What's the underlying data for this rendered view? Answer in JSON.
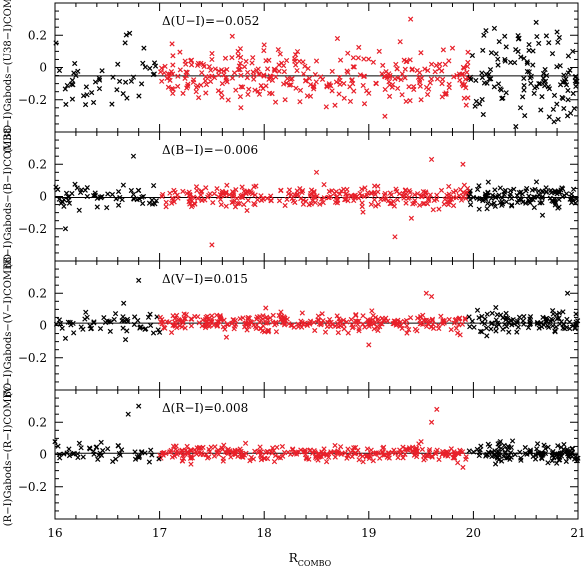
{
  "chart_data": {
    "type": "scatter",
    "x_axis": {
      "label_main": "R",
      "label_sub": "COMBO",
      "range": [
        16,
        21
      ],
      "ticks": [
        16,
        17,
        18,
        19,
        20,
        21
      ],
      "tick_labels": [
        "16",
        "17",
        "18",
        "19",
        "20",
        "21"
      ]
    },
    "y_axis_ticks": [
      0.2,
      0,
      -0.2
    ],
    "y_tick_labels": [
      "0.2",
      "0",
      "−0.2"
    ],
    "ylim": [
      -0.4,
      0.4
    ],
    "series_colors": {
      "inner": "#e8202a",
      "outer": "#000000"
    },
    "red_range": [
      17.0,
      19.95
    ],
    "panels": [
      {
        "id": "U-I",
        "ylabel": "(U₃₃−I)ᴏᴀᴅᴏᴈ₃−(U₃₃−I)ᴄᴏᴍᴅᴏ",
        "ylabel_text": "(U38−I)Gabods−(U38−I)COMBO",
        "annotation": "Δ(U−I)=−0.052",
        "offset": -0.052,
        "scatter_red": 0.075,
        "scatter_black": 0.14,
        "points": [
          [
            16.2,
            -0.05
          ],
          [
            16.3,
            -0.12
          ],
          [
            16.45,
            -0.02
          ],
          [
            16.6,
            0.02
          ],
          [
            16.75,
            -0.06
          ],
          [
            16.85,
            0.12
          ],
          [
            16.95,
            -0.04
          ],
          [
            17.1,
            -0.08
          ],
          [
            17.25,
            0.02
          ],
          [
            17.35,
            -0.15
          ],
          [
            17.5,
            0.05
          ],
          [
            17.6,
            -0.1
          ],
          [
            17.75,
            0.1
          ],
          [
            17.9,
            -0.05
          ],
          [
            18.0,
            0.14
          ],
          [
            18.1,
            -0.02
          ],
          [
            18.2,
            -0.2
          ],
          [
            18.3,
            0.08
          ],
          [
            18.4,
            -0.08
          ],
          [
            18.5,
            0.04
          ],
          [
            18.6,
            -0.12
          ],
          [
            18.7,
            0.18
          ],
          [
            18.8,
            -0.03
          ],
          [
            18.9,
            0.06
          ],
          [
            19.0,
            -0.16
          ],
          [
            19.1,
            0.1
          ],
          [
            19.2,
            -0.06
          ],
          [
            19.3,
            0.16
          ],
          [
            19.4,
            0.3
          ],
          [
            19.5,
            -0.2
          ],
          [
            19.6,
            0.02
          ],
          [
            19.7,
            -0.1
          ],
          [
            19.8,
            0.12
          ],
          [
            19.9,
            -0.04
          ],
          [
            20.1,
            0.2
          ],
          [
            20.2,
            -0.12
          ],
          [
            20.3,
            0.05
          ],
          [
            20.45,
            -0.25
          ],
          [
            20.6,
            0.28
          ],
          [
            20.7,
            -0.05
          ],
          [
            20.8,
            0.22
          ],
          [
            20.9,
            -0.3
          ],
          [
            20.95,
            0.1
          ]
        ]
      },
      {
        "id": "B-I",
        "ylabel_text": "(B−I)Gabods−(B−I)COMBO",
        "annotation": "Δ(B−I)=−0.006",
        "offset": -0.006,
        "scatter_red": 0.032,
        "scatter_black": 0.04,
        "points": [
          [
            16.1,
            -0.2
          ],
          [
            16.75,
            0.25
          ],
          [
            17.5,
            -0.3
          ],
          [
            18.5,
            0.15
          ],
          [
            19.25,
            -0.25
          ],
          [
            19.6,
            0.23
          ],
          [
            19.9,
            0.2
          ]
        ]
      },
      {
        "id": "V-I",
        "ylabel_text": "(V−I)Gabods−(V−I)COMBO",
        "annotation": "Δ(V−I)=0.015",
        "offset": 0.015,
        "scatter_red": 0.028,
        "scatter_black": 0.035,
        "points": [
          [
            16.1,
            -0.08
          ],
          [
            16.8,
            0.28
          ],
          [
            19.0,
            -0.12
          ],
          [
            19.55,
            0.2
          ],
          [
            19.6,
            0.18
          ],
          [
            20.9,
            0.2
          ]
        ]
      },
      {
        "id": "R-I",
        "ylabel_text": "(R−I)Gabods−(R−I)COMBO",
        "annotation": "Δ(R−I)=0.008",
        "offset": 0.008,
        "scatter_red": 0.022,
        "scatter_black": 0.028,
        "points": [
          [
            16.0,
            0.08
          ],
          [
            16.7,
            0.25
          ],
          [
            16.8,
            0.3
          ],
          [
            17.3,
            -0.06
          ],
          [
            19.5,
            0.08
          ],
          [
            19.6,
            0.2
          ],
          [
            19.65,
            0.28
          ],
          [
            19.9,
            -0.08
          ]
        ]
      }
    ]
  }
}
